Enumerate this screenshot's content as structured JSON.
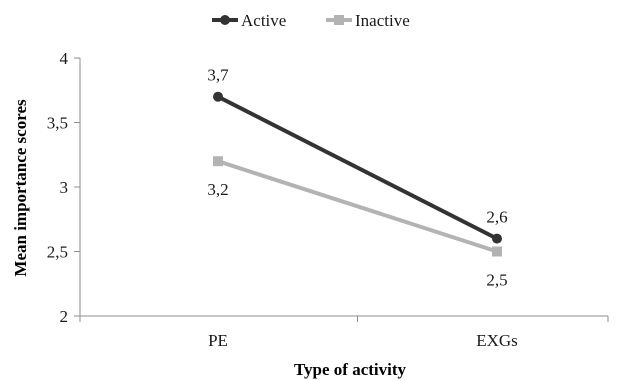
{
  "chart_data": {
    "type": "line",
    "categories": [
      "PE",
      "EXGs"
    ],
    "series": [
      {
        "name": "Active",
        "values": [
          3.7,
          2.6
        ],
        "labels": [
          "3,7",
          "2,6"
        ],
        "color": "#333333",
        "marker": "circle"
      },
      {
        "name": "Inactive",
        "values": [
          3.2,
          2.5
        ],
        "labels": [
          "3,2",
          "2,5"
        ],
        "color": "#b3b3b3",
        "marker": "square"
      }
    ],
    "xlabel": "Type of activity",
    "ylabel": "Mean importance scores",
    "ylim": [
      2,
      4
    ],
    "yticks": [
      2,
      2.5,
      3,
      3.5,
      4
    ],
    "ytick_labels": [
      "2",
      "2,5",
      "3",
      "3,5",
      "4"
    ],
    "grid": false,
    "legend_position": "top-center"
  }
}
